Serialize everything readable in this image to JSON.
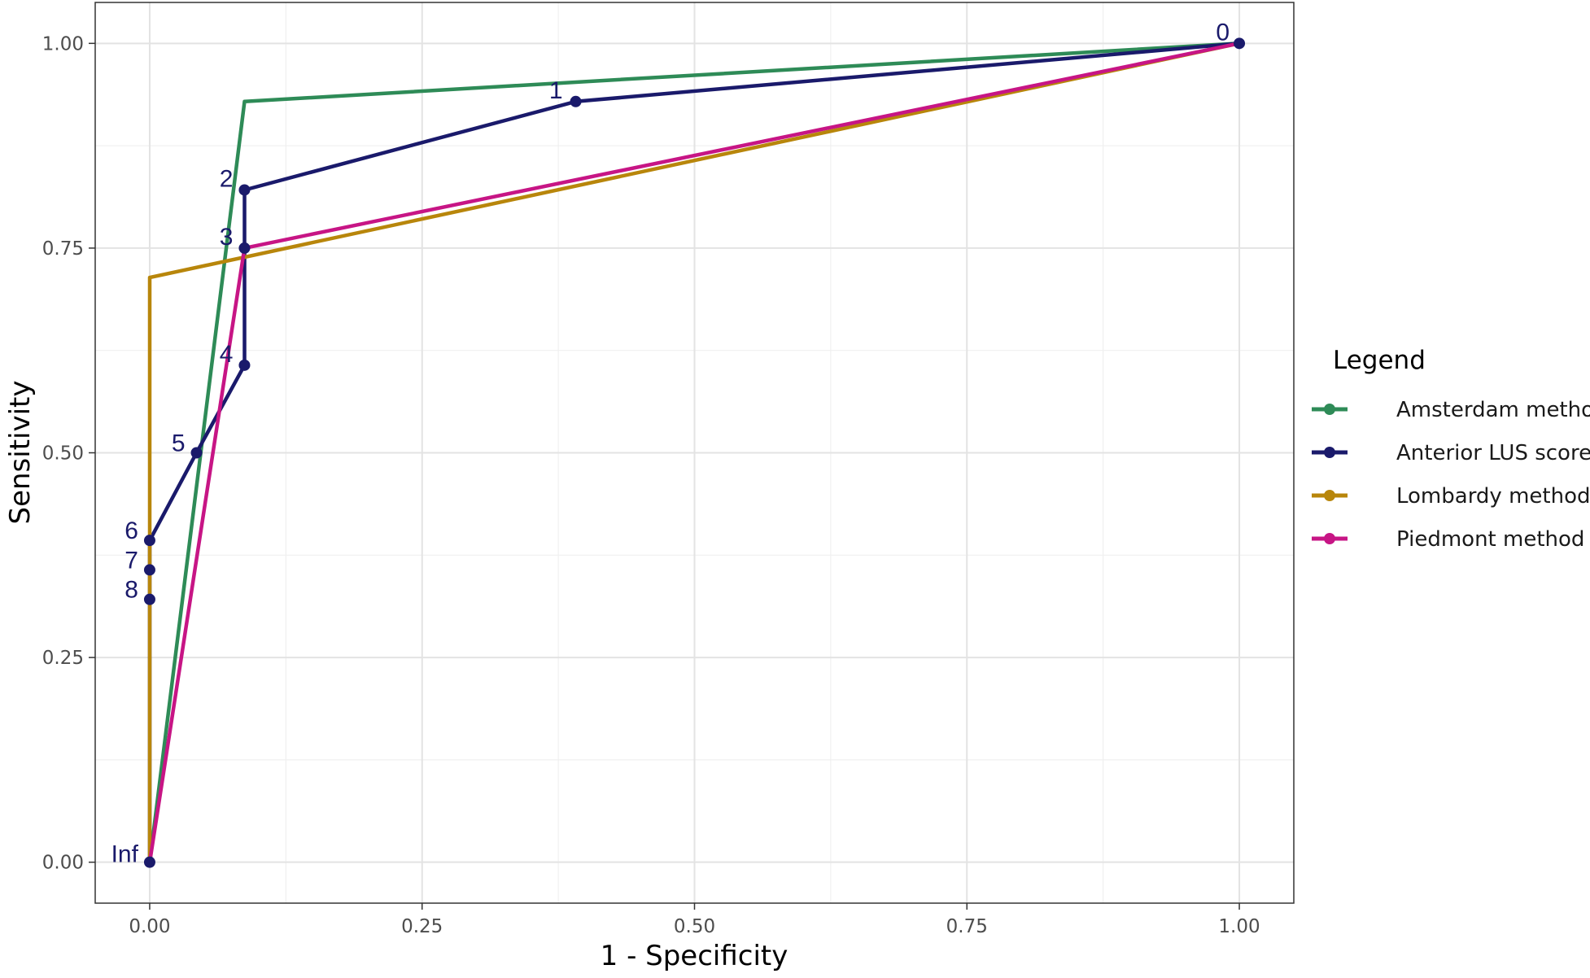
{
  "chart_data": {
    "type": "line",
    "xlabel": "1 - Specificity",
    "ylabel": "Sensitivity",
    "xlim": [
      -0.05,
      1.05
    ],
    "ylim": [
      -0.05,
      1.05
    ],
    "xticks": [
      "0.00",
      "0.25",
      "0.50",
      "0.75",
      "1.00"
    ],
    "yticks": [
      "0.00",
      "0.25",
      "0.50",
      "0.75",
      "1.00"
    ],
    "grid": true,
    "legend_title": "Legend",
    "legend_position": "right",
    "series": [
      {
        "name": "Amsterdam method",
        "color": "#2e8b57",
        "x": [
          0.0,
          0.087,
          1.0
        ],
        "y": [
          0.0,
          0.929,
          1.0
        ],
        "markers": false
      },
      {
        "name": "Anterior LUS score",
        "color": "#1a1a6b",
        "x": [
          0.0,
          0.0,
          0.0,
          0.0,
          0.043,
          0.087,
          0.087,
          0.087,
          0.391,
          1.0
        ],
        "y": [
          0.0,
          0.321,
          0.357,
          0.393,
          0.5,
          0.607,
          0.75,
          0.821,
          0.929,
          1.0
        ],
        "labels": [
          "Inf",
          "8",
          "7",
          "6",
          "5",
          "4",
          "3",
          "2",
          "1",
          "0"
        ],
        "markers": true
      },
      {
        "name": "Lombardy method",
        "color": "#b8860b",
        "x": [
          0.0,
          0.0,
          0.0,
          1.0
        ],
        "y": [
          0.0,
          0.393,
          0.714,
          1.0
        ],
        "markers": false
      },
      {
        "name": "Piedmont method",
        "color": "#c71585",
        "x": [
          0.0,
          0.087,
          1.0
        ],
        "y": [
          0.0,
          0.75,
          1.0
        ],
        "markers": false
      }
    ]
  }
}
